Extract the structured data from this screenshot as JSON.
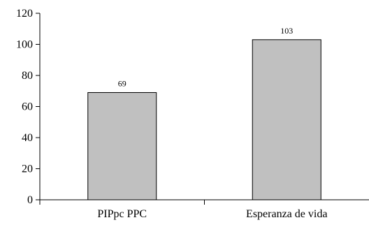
{
  "chart_data": {
    "type": "bar",
    "title": "",
    "xlabel": "",
    "ylabel": "",
    "categories": [
      "PIPpc PPC",
      "Esperanza de vida"
    ],
    "values": [
      69,
      103
    ],
    "data_labels": [
      "69",
      "103"
    ],
    "ylim": [
      0,
      120
    ],
    "yticks": [
      0,
      20,
      40,
      60,
      80,
      100,
      120
    ],
    "ytick_labels": [
      "0",
      "20",
      "40",
      "60",
      "80",
      "100",
      "120"
    ],
    "grid": false,
    "legend": "none",
    "colors": {
      "bar_fill": "#c0c0c0",
      "bar_stroke": "#000000",
      "axis": "#000000"
    }
  }
}
